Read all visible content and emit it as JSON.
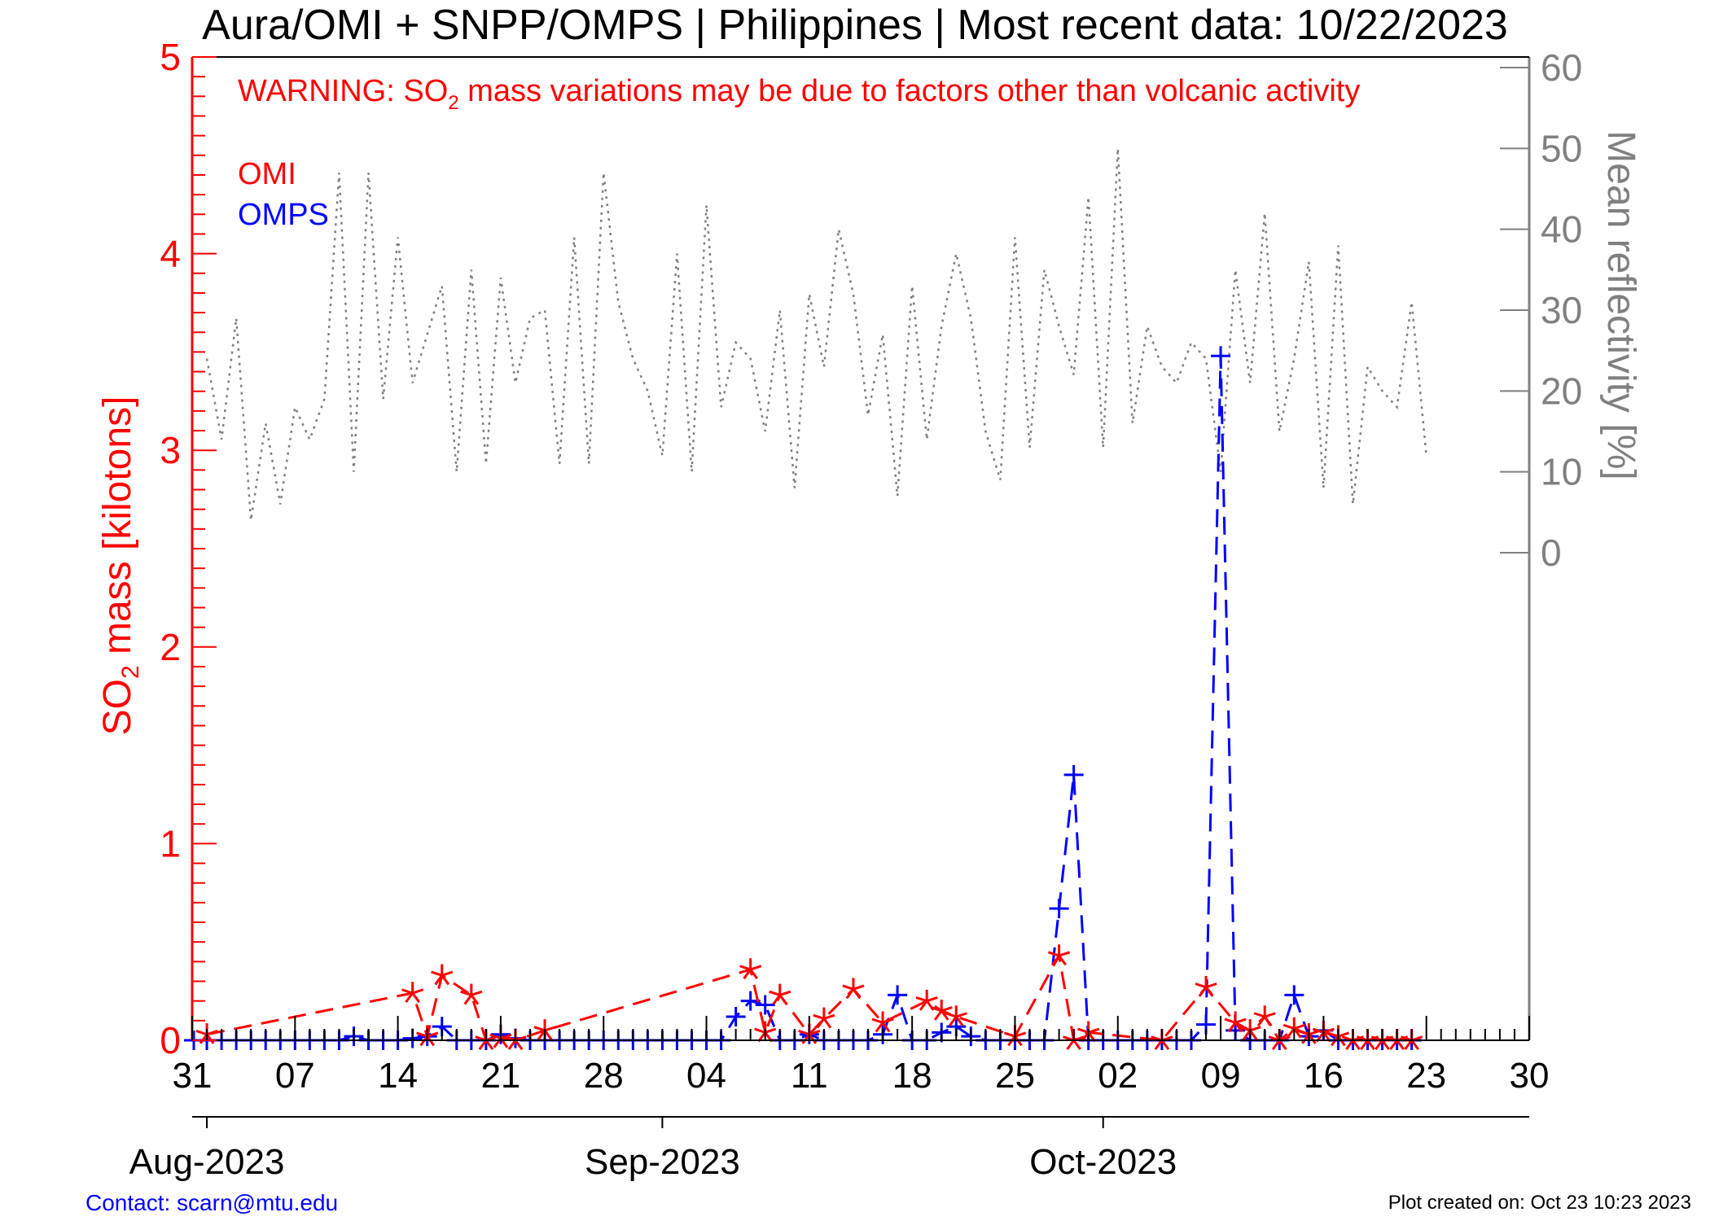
{
  "chart_data": {
    "type": "line",
    "title": "Aura/OMI + SNPP/OMPS | Philippines | Most recent data: 10/22/2023",
    "warning": {
      "prefix": "WARNING: SO",
      "subscript": "2",
      "suffix": " mass variations may be due to factors other than volcanic activity"
    },
    "ylabel_left": {
      "prefix": "SO",
      "subscript": "2",
      "suffix": " mass [kilotons]"
    },
    "ylabel_right": "Mean reflectivity [%]",
    "ylim_left": [
      0,
      5
    ],
    "ylim_right": [
      0,
      60
    ],
    "left_ticks": [
      "0",
      "1",
      "2",
      "3",
      "4",
      "5"
    ],
    "right_ticks": [
      "0",
      "10",
      "20",
      "30",
      "40",
      "50",
      "60"
    ],
    "x_tick_labels": [
      "31",
      "07",
      "14",
      "21",
      "28",
      "04",
      "11",
      "18",
      "25",
      "02",
      "09",
      "16",
      "23",
      "30"
    ],
    "month_labels": [
      "Aug-2023",
      "Sep-2023",
      "Oct-2023"
    ],
    "xlim_days": [
      "2023-07-31",
      "2023-10-30"
    ],
    "legend": [
      "OMI",
      "OMPS"
    ],
    "colors": {
      "omi": "#ff0000",
      "omps": "#0000ff",
      "reflectivity": "#808080",
      "axis_left": "#ff0000",
      "axis_right": "#808080"
    },
    "series": [
      {
        "name": "OMI",
        "style": "dashed",
        "marker": "star",
        "points": [
          [
            "2023-08-01",
            0.03
          ],
          [
            "2023-08-15",
            0.24
          ],
          [
            "2023-08-16",
            0.02
          ],
          [
            "2023-08-17",
            0.33
          ],
          [
            "2023-08-19",
            0.23
          ],
          [
            "2023-08-20",
            0.0
          ],
          [
            "2023-08-21",
            0.01
          ],
          [
            "2023-08-22",
            0.0
          ],
          [
            "2023-08-24",
            0.05
          ],
          [
            "2023-09-07",
            0.36
          ],
          [
            "2023-09-08",
            0.04
          ],
          [
            "2023-09-09",
            0.23
          ],
          [
            "2023-09-11",
            0.03
          ],
          [
            "2023-09-12",
            0.11
          ],
          [
            "2023-09-14",
            0.26
          ],
          [
            "2023-09-16",
            0.09
          ],
          [
            "2023-09-19",
            0.2
          ],
          [
            "2023-09-20",
            0.15
          ],
          [
            "2023-09-21",
            0.12
          ],
          [
            "2023-09-25",
            0.02
          ],
          [
            "2023-09-28",
            0.43
          ],
          [
            "2023-09-29",
            0.0
          ],
          [
            "2023-09-30",
            0.04
          ],
          [
            "2023-10-05",
            0.0
          ],
          [
            "2023-10-08",
            0.27
          ],
          [
            "2023-10-10",
            0.09
          ],
          [
            "2023-10-11",
            0.05
          ],
          [
            "2023-10-12",
            0.12
          ],
          [
            "2023-10-13",
            0.0
          ],
          [
            "2023-10-14",
            0.06
          ],
          [
            "2023-10-15",
            0.03
          ],
          [
            "2023-10-16",
            0.04
          ],
          [
            "2023-10-17",
            0.02
          ],
          [
            "2023-10-18",
            0.0
          ],
          [
            "2023-10-19",
            0.0
          ],
          [
            "2023-10-20",
            0.0
          ],
          [
            "2023-10-21",
            0.0
          ],
          [
            "2023-10-22",
            0.0
          ]
        ]
      },
      {
        "name": "OMPS",
        "style": "dashed",
        "marker": "plus",
        "points": [
          [
            "2023-07-31",
            0.0
          ],
          [
            "2023-08-01",
            0.0
          ],
          [
            "2023-08-02",
            0.0
          ],
          [
            "2023-08-03",
            0.0
          ],
          [
            "2023-08-04",
            0.0
          ],
          [
            "2023-08-05",
            0.0
          ],
          [
            "2023-08-06",
            0.0
          ],
          [
            "2023-08-07",
            0.0
          ],
          [
            "2023-08-08",
            0.0
          ],
          [
            "2023-08-09",
            0.0
          ],
          [
            "2023-08-10",
            0.0
          ],
          [
            "2023-08-11",
            0.02
          ],
          [
            "2023-08-12",
            0.0
          ],
          [
            "2023-08-13",
            0.0
          ],
          [
            "2023-08-14",
            0.0
          ],
          [
            "2023-08-15",
            0.01
          ],
          [
            "2023-08-16",
            0.02
          ],
          [
            "2023-08-17",
            0.07
          ],
          [
            "2023-08-18",
            0.0
          ],
          [
            "2023-08-19",
            0.0
          ],
          [
            "2023-08-20",
            0.0
          ],
          [
            "2023-08-21",
            0.03
          ],
          [
            "2023-08-22",
            0.01
          ],
          [
            "2023-08-23",
            0.0
          ],
          [
            "2023-08-24",
            0.0
          ],
          [
            "2023-08-25",
            0.0
          ],
          [
            "2023-08-26",
            0.0
          ],
          [
            "2023-08-27",
            0.0
          ],
          [
            "2023-08-28",
            0.0
          ],
          [
            "2023-08-29",
            0.0
          ],
          [
            "2023-08-30",
            0.0
          ],
          [
            "2023-08-31",
            0.0
          ],
          [
            "2023-09-01",
            0.0
          ],
          [
            "2023-09-02",
            0.0
          ],
          [
            "2023-09-03",
            0.0
          ],
          [
            "2023-09-04",
            0.0
          ],
          [
            "2023-09-05",
            0.0
          ],
          [
            "2023-09-06",
            0.12
          ],
          [
            "2023-09-07",
            0.2
          ],
          [
            "2023-09-08",
            0.18
          ],
          [
            "2023-09-09",
            0.0
          ],
          [
            "2023-09-10",
            0.0
          ],
          [
            "2023-09-11",
            0.03
          ],
          [
            "2023-09-12",
            0.0
          ],
          [
            "2023-09-13",
            0.0
          ],
          [
            "2023-09-14",
            0.0
          ],
          [
            "2023-09-15",
            0.0
          ],
          [
            "2023-09-16",
            0.03
          ],
          [
            "2023-09-17",
            0.23
          ],
          [
            "2023-09-18",
            0.0
          ],
          [
            "2023-09-19",
            0.0
          ],
          [
            "2023-09-20",
            0.04
          ],
          [
            "2023-09-21",
            0.07
          ],
          [
            "2023-09-22",
            0.02
          ],
          [
            "2023-09-23",
            0.0
          ],
          [
            "2023-09-24",
            0.0
          ],
          [
            "2023-09-25",
            0.0
          ],
          [
            "2023-09-26",
            0.0
          ],
          [
            "2023-09-27",
            0.0
          ],
          [
            "2023-09-28",
            0.67
          ],
          [
            "2023-09-29",
            1.35
          ],
          [
            "2023-09-30",
            0.0
          ],
          [
            "2023-10-01",
            0.0
          ],
          [
            "2023-10-02",
            0.0
          ],
          [
            "2023-10-03",
            0.0
          ],
          [
            "2023-10-04",
            0.0
          ],
          [
            "2023-10-05",
            0.0
          ],
          [
            "2023-10-06",
            0.0
          ],
          [
            "2023-10-07",
            0.0
          ],
          [
            "2023-10-08",
            0.08
          ],
          [
            "2023-10-09",
            3.48
          ],
          [
            "2023-10-10",
            0.05
          ],
          [
            "2023-10-11",
            0.0
          ],
          [
            "2023-10-12",
            0.0
          ],
          [
            "2023-10-13",
            0.0
          ],
          [
            "2023-10-14",
            0.23
          ],
          [
            "2023-10-15",
            0.02
          ],
          [
            "2023-10-16",
            0.05
          ],
          [
            "2023-10-17",
            0.0
          ],
          [
            "2023-10-18",
            0.0
          ],
          [
            "2023-10-19",
            0.0
          ],
          [
            "2023-10-20",
            0.0
          ],
          [
            "2023-10-21",
            0.0
          ],
          [
            "2023-10-22",
            0.0
          ]
        ]
      },
      {
        "name": "Mean reflectivity",
        "axis": "right",
        "style": "dotted",
        "points": [
          [
            "2023-08-01",
            24
          ],
          [
            "2023-08-02",
            14
          ],
          [
            "2023-08-03",
            29
          ],
          [
            "2023-08-04",
            4
          ],
          [
            "2023-08-05",
            16
          ],
          [
            "2023-08-06",
            6
          ],
          [
            "2023-08-07",
            18
          ],
          [
            "2023-08-08",
            14
          ],
          [
            "2023-08-09",
            19
          ],
          [
            "2023-08-10",
            47
          ],
          [
            "2023-08-11",
            10
          ],
          [
            "2023-08-12",
            47
          ],
          [
            "2023-08-13",
            19
          ],
          [
            "2023-08-14",
            39
          ],
          [
            "2023-08-15",
            21
          ],
          [
            "2023-08-16",
            27
          ],
          [
            "2023-08-17",
            33
          ],
          [
            "2023-08-18",
            10
          ],
          [
            "2023-08-19",
            35
          ],
          [
            "2023-08-20",
            11
          ],
          [
            "2023-08-21",
            34
          ],
          [
            "2023-08-22",
            21
          ],
          [
            "2023-08-23",
            29
          ],
          [
            "2023-08-24",
            30
          ],
          [
            "2023-08-25",
            11
          ],
          [
            "2023-08-26",
            39
          ],
          [
            "2023-08-27",
            11
          ],
          [
            "2023-08-28",
            47
          ],
          [
            "2023-08-29",
            31
          ],
          [
            "2023-08-30",
            24
          ],
          [
            "2023-08-31",
            20
          ],
          [
            "2023-09-01",
            12
          ],
          [
            "2023-09-02",
            37
          ],
          [
            "2023-09-03",
            10
          ],
          [
            "2023-09-04",
            43
          ],
          [
            "2023-09-05",
            18
          ],
          [
            "2023-09-06",
            26
          ],
          [
            "2023-09-07",
            24
          ],
          [
            "2023-09-08",
            15
          ],
          [
            "2023-09-09",
            30
          ],
          [
            "2023-09-10",
            8
          ],
          [
            "2023-09-11",
            32
          ],
          [
            "2023-09-12",
            23
          ],
          [
            "2023-09-13",
            40
          ],
          [
            "2023-09-14",
            32
          ],
          [
            "2023-09-15",
            17
          ],
          [
            "2023-09-16",
            27
          ],
          [
            "2023-09-17",
            7
          ],
          [
            "2023-09-18",
            33
          ],
          [
            "2023-09-19",
            14
          ],
          [
            "2023-09-20",
            28
          ],
          [
            "2023-09-21",
            37
          ],
          [
            "2023-09-22",
            29
          ],
          [
            "2023-09-23",
            15
          ],
          [
            "2023-09-24",
            9
          ],
          [
            "2023-09-25",
            39
          ],
          [
            "2023-09-26",
            13
          ],
          [
            "2023-09-27",
            35
          ],
          [
            "2023-09-28",
            28
          ],
          [
            "2023-09-29",
            22
          ],
          [
            "2023-09-30",
            44
          ],
          [
            "2023-10-01",
            13
          ],
          [
            "2023-10-02",
            50
          ],
          [
            "2023-10-03",
            16
          ],
          [
            "2023-10-04",
            28
          ],
          [
            "2023-10-05",
            23
          ],
          [
            "2023-10-06",
            21
          ],
          [
            "2023-10-07",
            26
          ],
          [
            "2023-10-08",
            24
          ],
          [
            "2023-10-09",
            10
          ],
          [
            "2023-10-10",
            35
          ],
          [
            "2023-10-11",
            21
          ],
          [
            "2023-10-12",
            42
          ],
          [
            "2023-10-13",
            15
          ],
          [
            "2023-10-14",
            24
          ],
          [
            "2023-10-15",
            36
          ],
          [
            "2023-10-16",
            8
          ],
          [
            "2023-10-17",
            38
          ],
          [
            "2023-10-18",
            6
          ],
          [
            "2023-10-19",
            23
          ],
          [
            "2023-10-20",
            20
          ],
          [
            "2023-10-21",
            18
          ],
          [
            "2023-10-22",
            31
          ],
          [
            "2023-10-23",
            12
          ]
        ]
      }
    ]
  },
  "footer": {
    "contact": "Contact: scarn@mtu.edu",
    "created": "Plot created on: Oct 23 10:23 2023"
  }
}
